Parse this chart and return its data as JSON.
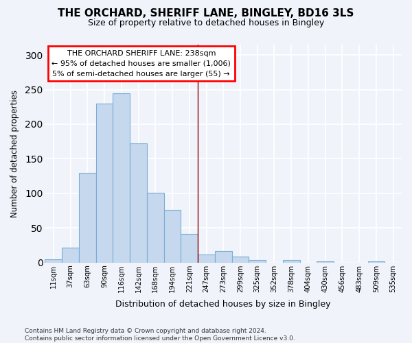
{
  "title": "THE ORCHARD, SHERIFF LANE, BINGLEY, BD16 3LS",
  "subtitle": "Size of property relative to detached houses in Bingley",
  "xlabel": "Distribution of detached houses by size in Bingley",
  "ylabel": "Number of detached properties",
  "categories": [
    "11sqm",
    "37sqm",
    "63sqm",
    "90sqm",
    "116sqm",
    "142sqm",
    "168sqm",
    "194sqm",
    "221sqm",
    "247sqm",
    "273sqm",
    "299sqm",
    "325sqm",
    "352sqm",
    "378sqm",
    "404sqm",
    "430sqm",
    "456sqm",
    "483sqm",
    "509sqm",
    "535sqm"
  ],
  "values": [
    5,
    22,
    130,
    230,
    245,
    172,
    101,
    76,
    41,
    12,
    17,
    9,
    4,
    0,
    4,
    0,
    2,
    0,
    0,
    2,
    0
  ],
  "bar_color": "#c5d8ee",
  "bar_edge_color": "#7aadd4",
  "background_color": "#f0f4fa",
  "grid_color": "#ffffff",
  "annotation_line1": "THE ORCHARD SHERIFF LANE: 238sqm",
  "annotation_line2": "← 95% of detached houses are smaller (1,006)",
  "annotation_line3": "5% of semi-detached houses are larger (55) →",
  "vline_x_index": 9,
  "vline_color": "#8b0000",
  "ylim": [
    0,
    315
  ],
  "yticks": [
    0,
    50,
    100,
    150,
    200,
    250,
    300
  ],
  "footer_line1": "Contains HM Land Registry data © Crown copyright and database right 2024.",
  "footer_line2": "Contains public sector information licensed under the Open Government Licence v3.0."
}
